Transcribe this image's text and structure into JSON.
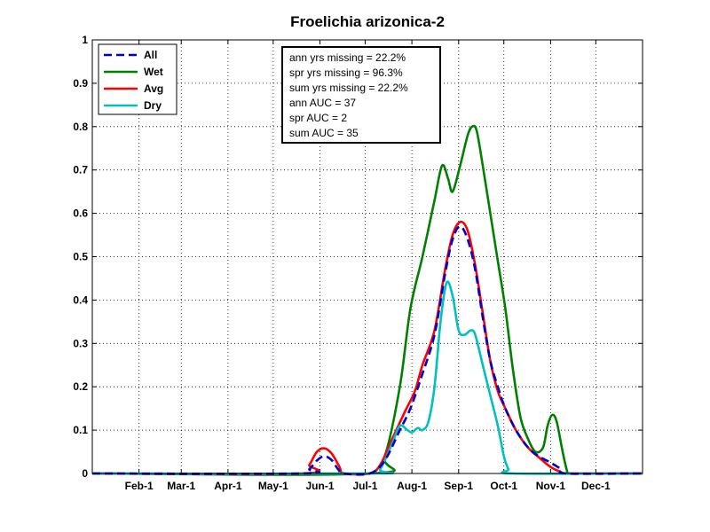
{
  "chart_data": {
    "type": "line",
    "title": "Froelichia arizonica-2",
    "xlabel": "",
    "ylabel": "",
    "x_ticks": [
      "Feb-1",
      "Mar-1",
      "Apr-1",
      "May-1",
      "Jun-1",
      "Jul-1",
      "Aug-1",
      "Sep-1",
      "Oct-1",
      "Nov-1",
      "Dec-1"
    ],
    "x_tick_days": [
      32,
      60,
      91,
      121,
      152,
      182,
      213,
      244,
      274,
      305,
      335
    ],
    "xlim": [
      1,
      366
    ],
    "y_ticks": [
      "0",
      "0.1",
      "0.2",
      "0.3",
      "0.4",
      "0.5",
      "0.6",
      "0.7",
      "0.8",
      "0.9",
      "1"
    ],
    "ylim": [
      0,
      1
    ],
    "grid": true,
    "legend_position": "top-left",
    "stats": [
      "ann yrs missing = 22.2%",
      "spr yrs missing = 96.3%",
      "sum yrs missing = 22.2%",
      "ann AUC = 37",
      "spr AUC = 2",
      "sum AUC = 35"
    ],
    "series": [
      {
        "name": "All",
        "color": "#0000cc",
        "dash": true,
        "points": [
          [
            1,
            0
          ],
          [
            140,
            0
          ],
          [
            145,
            0.01
          ],
          [
            150,
            0.03
          ],
          [
            155,
            0.04
          ],
          [
            160,
            0.03
          ],
          [
            164,
            0.01
          ],
          [
            168,
            0
          ],
          [
            185,
            0
          ],
          [
            195,
            0.03
          ],
          [
            205,
            0.1
          ],
          [
            212,
            0.15
          ],
          [
            220,
            0.23
          ],
          [
            228,
            0.32
          ],
          [
            235,
            0.46
          ],
          [
            240,
            0.54
          ],
          [
            245,
            0.57
          ],
          [
            250,
            0.54
          ],
          [
            255,
            0.47
          ],
          [
            260,
            0.36
          ],
          [
            265,
            0.26
          ],
          [
            270,
            0.2
          ],
          [
            275,
            0.15
          ],
          [
            282,
            0.1
          ],
          [
            290,
            0.06
          ],
          [
            297,
            0.04
          ],
          [
            305,
            0.025
          ],
          [
            312,
            0.01
          ],
          [
            316,
            0
          ],
          [
            366,
            0
          ]
        ]
      },
      {
        "name": "Wet",
        "color": "#008000",
        "dash": false,
        "points": [
          [
            1,
            0
          ],
          [
            185,
            0
          ],
          [
            195,
            0.04
          ],
          [
            205,
            0.2
          ],
          [
            212,
            0.38
          ],
          [
            220,
            0.5
          ],
          [
            228,
            0.63
          ],
          [
            233,
            0.71
          ],
          [
            237,
            0.68
          ],
          [
            240,
            0.65
          ],
          [
            245,
            0.71
          ],
          [
            250,
            0.78
          ],
          [
            253,
            0.8
          ],
          [
            256,
            0.79
          ],
          [
            260,
            0.71
          ],
          [
            265,
            0.6
          ],
          [
            270,
            0.49
          ],
          [
            275,
            0.38
          ],
          [
            280,
            0.24
          ],
          [
            285,
            0.13
          ],
          [
            290,
            0.08
          ],
          [
            295,
            0.05
          ],
          [
            300,
            0.06
          ],
          [
            303,
            0.11
          ],
          [
            306,
            0.135
          ],
          [
            309,
            0.12
          ],
          [
            313,
            0.05
          ],
          [
            316,
            0.005
          ],
          [
            318,
            0
          ],
          [
            366,
            0
          ]
        ]
      },
      {
        "name": "Avg",
        "color": "#ff0000",
        "dash": false,
        "points": [
          [
            1,
            0
          ],
          [
            140,
            0
          ],
          [
            145,
            0.02
          ],
          [
            150,
            0.05
          ],
          [
            155,
            0.058
          ],
          [
            160,
            0.045
          ],
          [
            165,
            0.015
          ],
          [
            168,
            0
          ],
          [
            185,
            0
          ],
          [
            192,
            0.02
          ],
          [
            200,
            0.08
          ],
          [
            208,
            0.14
          ],
          [
            215,
            0.19
          ],
          [
            220,
            0.25
          ],
          [
            228,
            0.33
          ],
          [
            235,
            0.47
          ],
          [
            240,
            0.55
          ],
          [
            245,
            0.58
          ],
          [
            250,
            0.56
          ],
          [
            255,
            0.48
          ],
          [
            260,
            0.37
          ],
          [
            265,
            0.26
          ],
          [
            270,
            0.19
          ],
          [
            275,
            0.15
          ],
          [
            282,
            0.1
          ],
          [
            290,
            0.06
          ],
          [
            298,
            0.035
          ],
          [
            305,
            0.015
          ],
          [
            312,
            0.003
          ],
          [
            315,
            0
          ],
          [
            366,
            0
          ]
        ]
      },
      {
        "name": "Dry",
        "color": "#00c0c0",
        "dash": false,
        "points": [
          [
            1,
            0
          ],
          [
            185,
            0
          ],
          [
            192,
            0.01
          ],
          [
            200,
            0.07
          ],
          [
            205,
            0.11
          ],
          [
            210,
            0.1
          ],
          [
            213,
            0.095
          ],
          [
            217,
            0.105
          ],
          [
            220,
            0.1
          ],
          [
            224,
            0.12
          ],
          [
            228,
            0.2
          ],
          [
            232,
            0.35
          ],
          [
            236,
            0.44
          ],
          [
            240,
            0.41
          ],
          [
            244,
            0.33
          ],
          [
            248,
            0.32
          ],
          [
            252,
            0.33
          ],
          [
            255,
            0.32
          ],
          [
            260,
            0.25
          ],
          [
            265,
            0.18
          ],
          [
            270,
            0.11
          ],
          [
            274,
            0.04
          ],
          [
            277,
            0.01
          ],
          [
            280,
            0
          ],
          [
            366,
            0
          ]
        ]
      }
    ]
  }
}
